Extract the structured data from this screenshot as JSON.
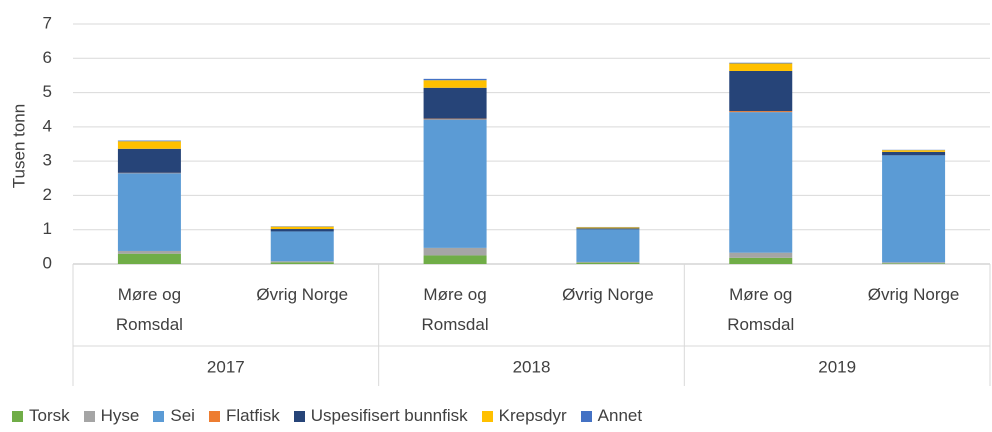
{
  "chart_data": {
    "type": "stacked_bar",
    "y_label": "Tusen tonn",
    "categories": [
      "Møre og Romsdal",
      "Øvrig Norge",
      "Møre og Romsdal",
      "Øvrig Norge",
      "Møre og Romsdal",
      "Øvrig Norge"
    ],
    "groups": [
      "2017",
      "2018",
      "2019"
    ],
    "series": [
      {
        "name": "Torsk",
        "color": "#70ad47",
        "values": [
          0.3,
          0.05,
          0.25,
          0.04,
          0.18,
          0.02
        ]
      },
      {
        "name": "Hyse",
        "color": "#a5a5a5",
        "values": [
          0.08,
          0.03,
          0.22,
          0.02,
          0.15,
          0.03
        ]
      },
      {
        "name": "Sei",
        "color": "#5b9bd5",
        "values": [
          2.27,
          0.87,
          3.75,
          0.95,
          4.1,
          3.12
        ]
      },
      {
        "name": "Flatfisk",
        "color": "#ed7d31",
        "values": [
          0.01,
          0,
          0.02,
          0,
          0.03,
          0
        ]
      },
      {
        "name": "Uspesifisert bunnfisk",
        "color": "#264478",
        "values": [
          0.7,
          0.07,
          0.9,
          0.03,
          1.17,
          0.1
        ]
      },
      {
        "name": "Krepsdyr",
        "color": "#ffc000",
        "values": [
          0.22,
          0.07,
          0.22,
          0.03,
          0.22,
          0.05
        ]
      },
      {
        "name": "Annet",
        "color": "#4472c4",
        "values": [
          0.02,
          0.01,
          0.04,
          0.01,
          0.02,
          0.01
        ]
      }
    ],
    "ylim": [
      0,
      7
    ],
    "yticks": [
      0,
      1,
      2,
      3,
      4,
      5,
      6,
      7
    ],
    "grid": true,
    "legend": "bottom"
  }
}
